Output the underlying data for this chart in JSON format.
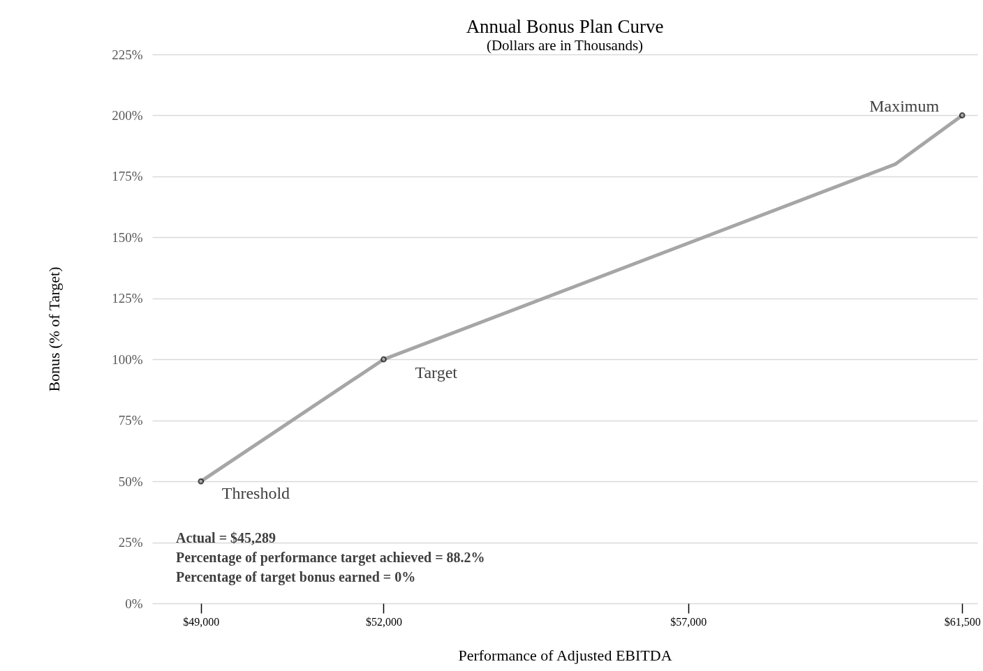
{
  "chart_data": {
    "type": "line",
    "title": "Annual Bonus Plan Curve",
    "subtitle": "(Dollars are in Thousands)",
    "xlabel": "Performance of Adjusted EBITDA",
    "ylabel": "Bonus (% of Target)",
    "xlim": [
      48200,
      61750
    ],
    "xticks": [
      {
        "value": 49000,
        "label": "$49,000"
      },
      {
        "value": 52000,
        "label": "$52,000"
      },
      {
        "value": 57000,
        "label": "$57,000"
      },
      {
        "value": 61500,
        "label": "$61,500"
      }
    ],
    "ylim": [
      0,
      225
    ],
    "yticks": [
      {
        "value": 0,
        "label": "0%"
      },
      {
        "value": 25,
        "label": "25%"
      },
      {
        "value": 50,
        "label": "50%"
      },
      {
        "value": 75,
        "label": "75%"
      },
      {
        "value": 100,
        "label": "100%"
      },
      {
        "value": 125,
        "label": "125%"
      },
      {
        "value": 150,
        "label": "150%"
      },
      {
        "value": 175,
        "label": "175%"
      },
      {
        "value": 200,
        "label": "200%"
      },
      {
        "value": 225,
        "label": "225%"
      }
    ],
    "grid": "y",
    "series": [
      {
        "type": "line",
        "color": "#a6a6a6",
        "x": [
          49000,
          52000,
          60400,
          61500
        ],
        "values": [
          50,
          100,
          180,
          200
        ]
      },
      {
        "type": "scatter",
        "marker": "circle",
        "color": "#000000",
        "x": [
          49000,
          52000,
          61500
        ],
        "values": [
          50,
          100,
          200
        ]
      }
    ],
    "annotations": [
      {
        "text": "Threshold",
        "x": 49000,
        "y": 50
      },
      {
        "text": "Target",
        "x": 52000,
        "y": 100
      },
      {
        "text": "Maximum",
        "x": 61500,
        "y": 200
      },
      "Actual = $45,289",
      "Percentage of performance target achieved = 88.2%",
      "Percentage of target bonus earned = 0%"
    ]
  }
}
